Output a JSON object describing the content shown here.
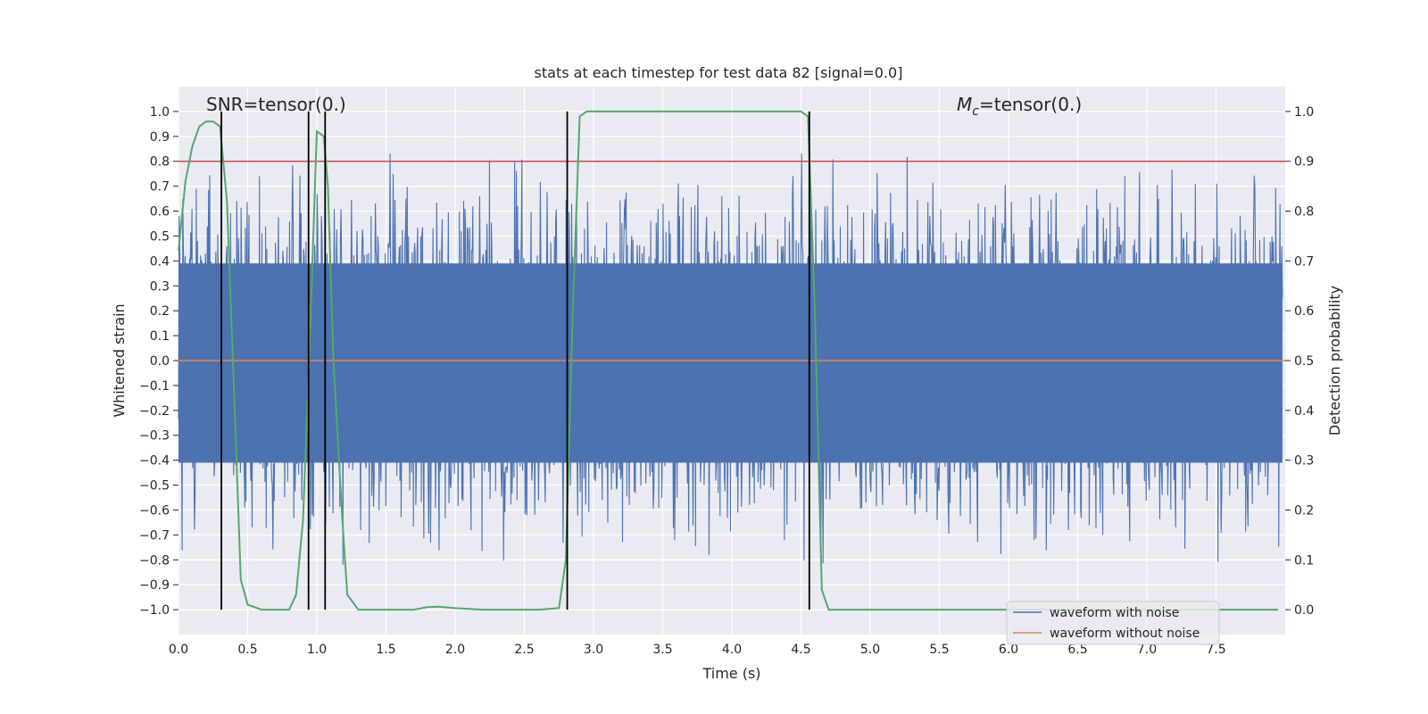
{
  "chart_data": {
    "type": "line",
    "title": "stats at each timestep for test data 82 [signal=0.0]",
    "xlabel": "Time (s)",
    "ylabel_left": "Whitened strain",
    "ylabel_right": "Detection probability",
    "xlim": [
      0.0,
      8.0
    ],
    "ylim_left": [
      -1.1,
      1.1
    ],
    "ylim_right": [
      -0.05,
      1.05
    ],
    "x_ticks": [
      "0.0",
      "0.5",
      "1.0",
      "1.5",
      "2.0",
      "2.5",
      "3.0",
      "3.5",
      "4.0",
      "4.5",
      "5.0",
      "5.5",
      "6.0",
      "6.5",
      "7.0",
      "7.5"
    ],
    "y_ticks_left": [
      "1.0",
      "0.9",
      "0.8",
      "0.7",
      "0.6",
      "0.5",
      "0.4",
      "0.3",
      "0.2",
      "0.1",
      "0.0",
      "−0.1",
      "−0.2",
      "−0.3",
      "−0.4",
      "−0.5",
      "−0.6",
      "−0.7",
      "−0.8",
      "−0.9",
      "−1.0"
    ],
    "y_ticks_right": [
      "1.0",
      "0.9",
      "0.8",
      "0.7",
      "0.6",
      "0.5",
      "0.4",
      "0.3",
      "0.2",
      "0.1",
      "0.0"
    ],
    "grid": true,
    "legend_position": "lower-right",
    "annotations": {
      "snr": "SNR=tensor(0.)",
      "mc_symbol": "M",
      "mc_subscript": "c",
      "mc_value": "=tensor(0.)"
    },
    "series": [
      {
        "name": "waveform with noise",
        "color": "#4c72b0",
        "kind": "noisy-strain",
        "approx_envelope": [
          -1.0,
          0.98
        ]
      },
      {
        "name": "waveform without noise",
        "color": "#dd8452",
        "kind": "constant",
        "y": 0.0
      },
      {
        "color": "#55a868",
        "axis": "right",
        "kind": "probability",
        "points": [
          [
            0.0,
            0.72
          ],
          [
            0.05,
            0.86
          ],
          [
            0.1,
            0.93
          ],
          [
            0.15,
            0.97
          ],
          [
            0.2,
            0.98
          ],
          [
            0.25,
            0.98
          ],
          [
            0.3,
            0.97
          ],
          [
            0.35,
            0.82
          ],
          [
            0.4,
            0.45
          ],
          [
            0.45,
            0.06
          ],
          [
            0.5,
            0.01
          ],
          [
            0.6,
            0.0
          ],
          [
            0.7,
            0.0
          ],
          [
            0.8,
            0.0
          ],
          [
            0.85,
            0.03
          ],
          [
            0.9,
            0.18
          ],
          [
            0.95,
            0.55
          ],
          [
            1.0,
            0.96
          ],
          [
            1.05,
            0.95
          ],
          [
            1.08,
            0.85
          ],
          [
            1.12,
            0.5
          ],
          [
            1.18,
            0.2
          ],
          [
            1.22,
            0.03
          ],
          [
            1.3,
            0.0
          ],
          [
            1.5,
            0.0
          ],
          [
            1.7,
            0.0
          ],
          [
            1.8,
            0.005
          ],
          [
            1.88,
            0.006
          ],
          [
            2.0,
            0.003
          ],
          [
            2.2,
            0.0
          ],
          [
            2.6,
            0.0
          ],
          [
            2.75,
            0.003
          ],
          [
            2.8,
            0.1
          ],
          [
            2.85,
            0.6
          ],
          [
            2.9,
            0.99
          ],
          [
            2.95,
            1.0
          ],
          [
            3.5,
            1.0
          ],
          [
            4.0,
            1.0
          ],
          [
            4.5,
            1.0
          ],
          [
            4.55,
            0.99
          ],
          [
            4.6,
            0.6
          ],
          [
            4.65,
            0.04
          ],
          [
            4.7,
            0.0
          ],
          [
            5.0,
            0.0
          ],
          [
            6.0,
            0.0
          ],
          [
            7.0,
            0.0
          ],
          [
            7.95,
            0.0
          ]
        ]
      },
      {
        "color": "#c44e52",
        "axis": "right",
        "kind": "threshold",
        "y": 0.9
      }
    ],
    "vertical_markers": [
      0.31,
      0.94,
      1.06,
      2.81,
      4.56
    ],
    "marker_color": "#000000"
  }
}
